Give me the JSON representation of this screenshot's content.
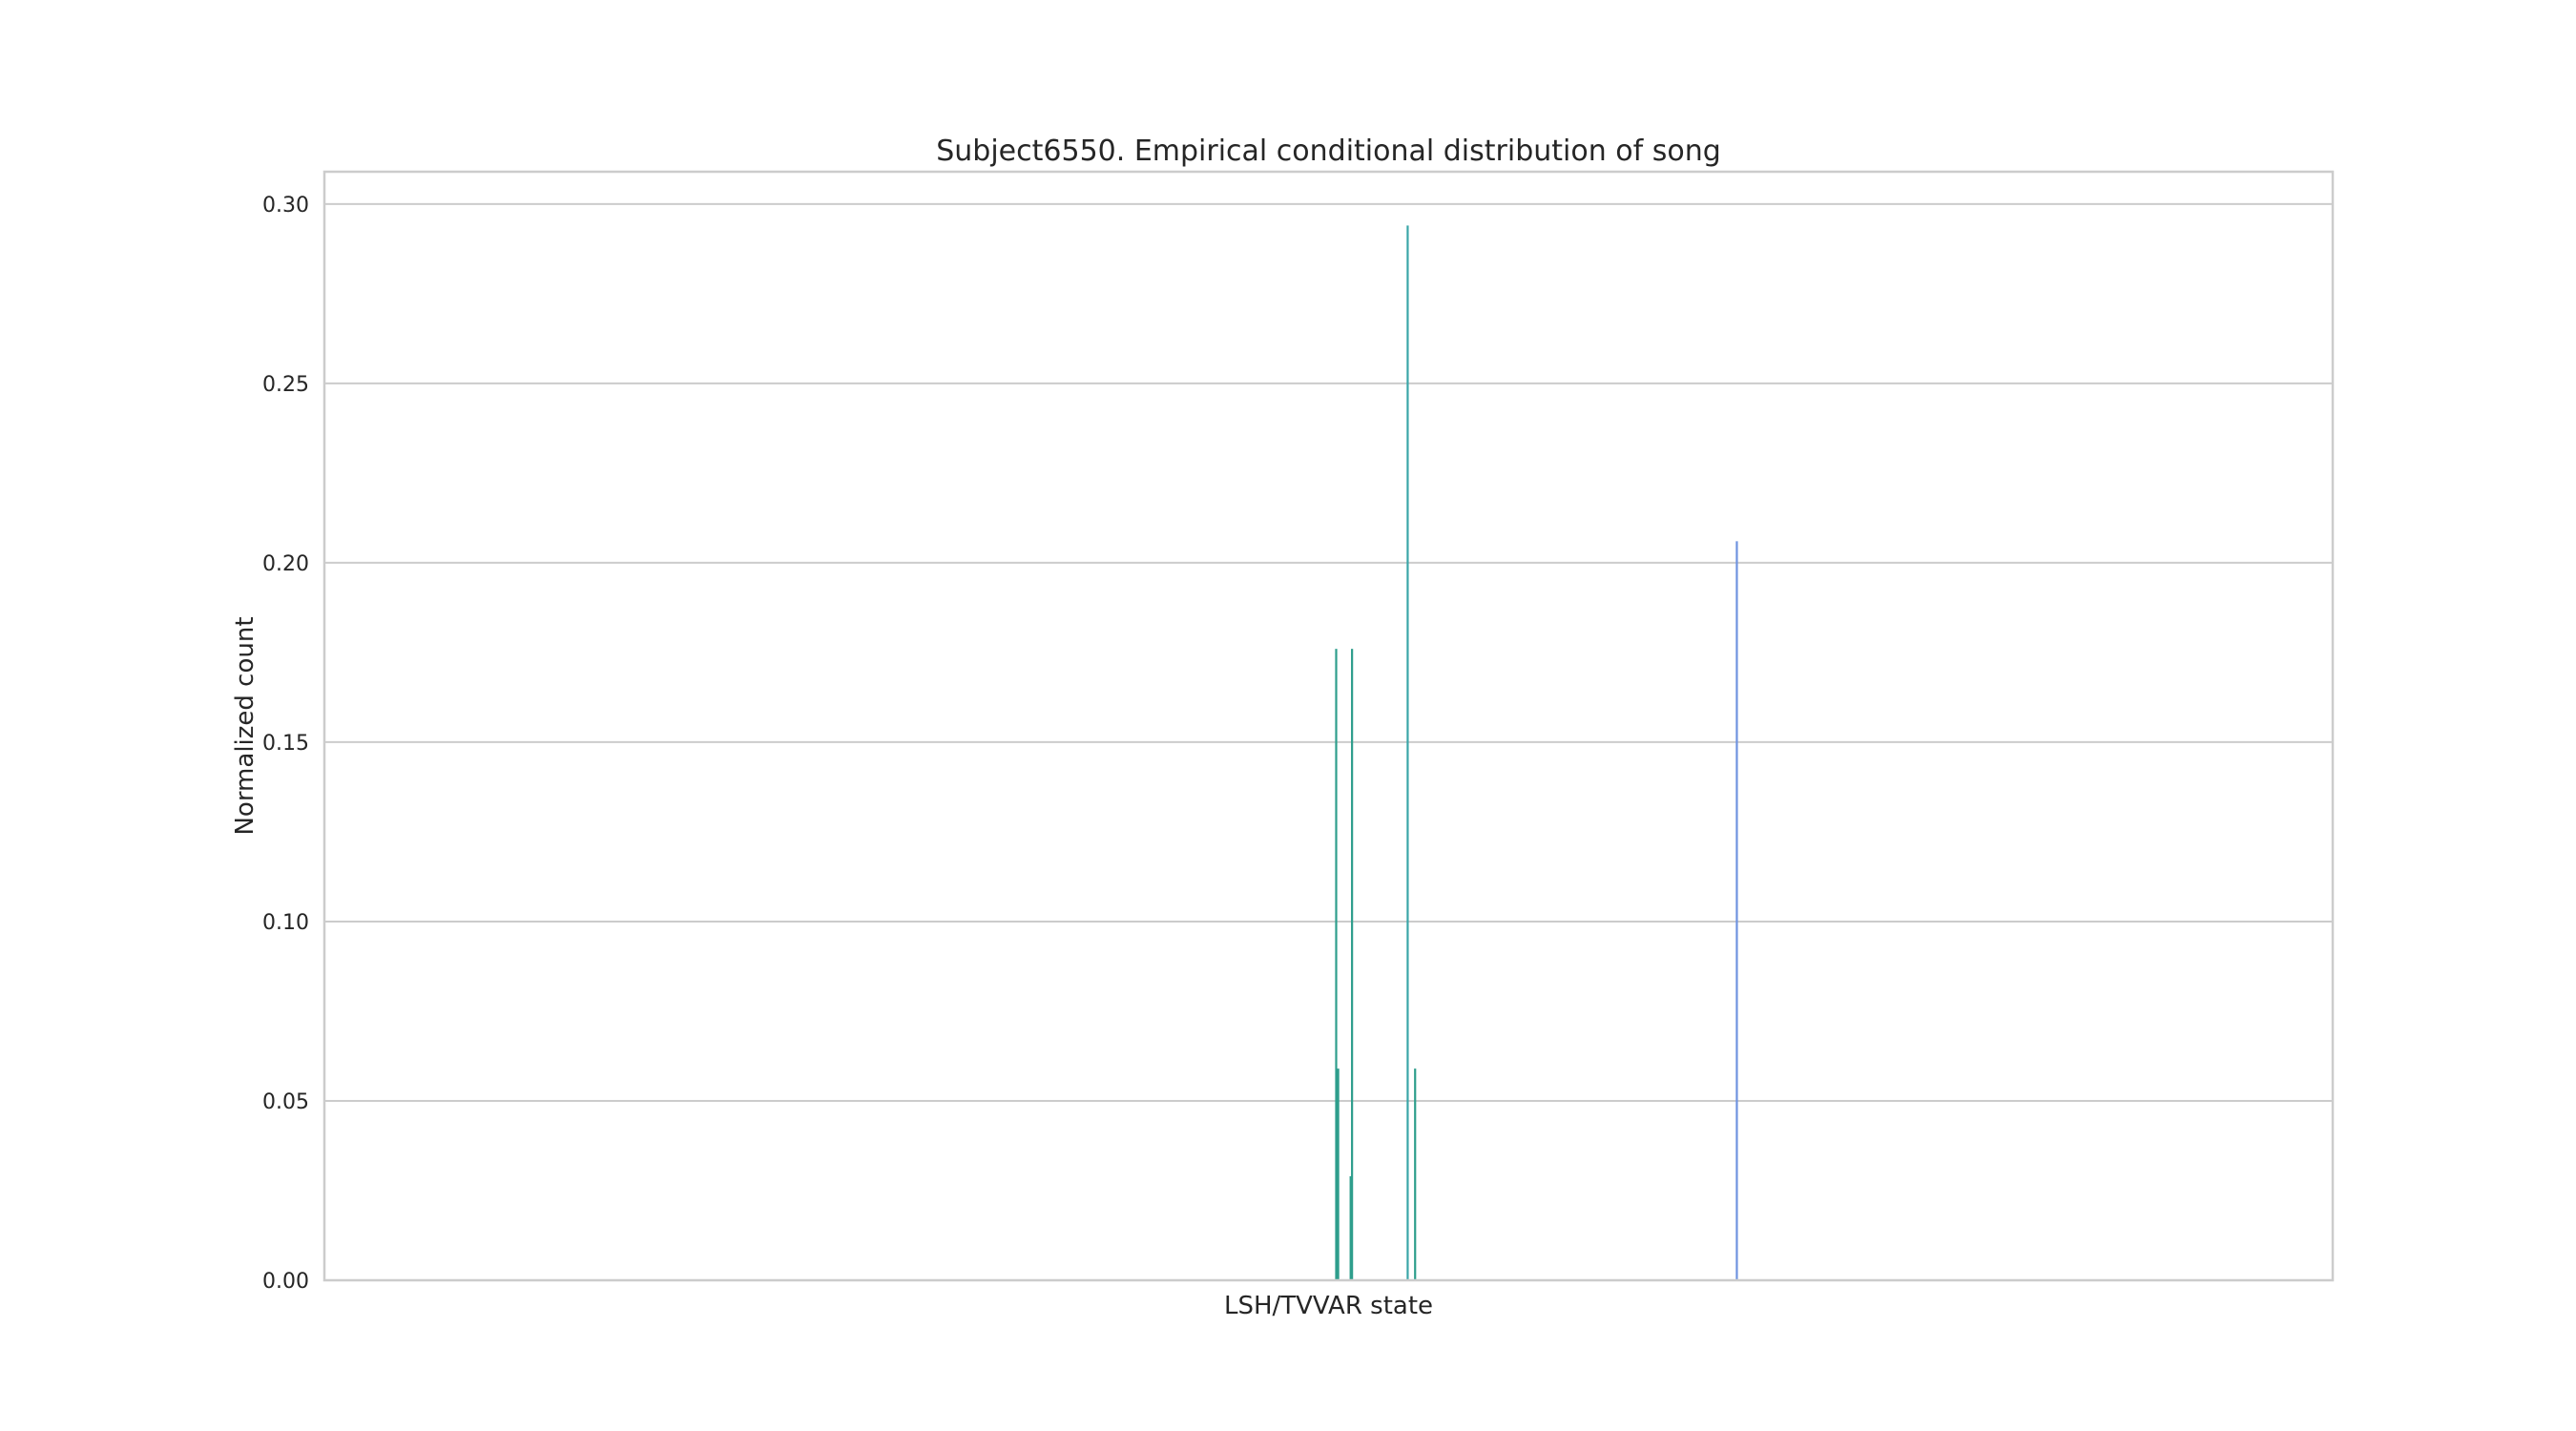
{
  "chart_data": {
    "type": "bar",
    "title": "Subject6550. Empirical conditional distribution of song",
    "xlabel": "LSH/TVVAR state",
    "ylabel": "Normalized count",
    "ylim": [
      0,
      0.309
    ],
    "xlim": [
      0,
      1000
    ],
    "yticks": [
      0.0,
      0.05,
      0.1,
      0.15,
      0.2,
      0.25,
      0.3
    ],
    "ytick_labels": [
      "0.00",
      "0.05",
      "0.10",
      "0.15",
      "0.20",
      "0.25",
      "0.30"
    ],
    "grid": "y",
    "x_tick_labels_shown": false,
    "bars": [
      {
        "x": 503.8,
        "value": 0.176,
        "color": "#2e9e8c"
      },
      {
        "x": 504.8,
        "value": 0.059,
        "color": "#2e9e8c"
      },
      {
        "x": 511.0,
        "value": 0.029,
        "color": "#2e9e8c"
      },
      {
        "x": 511.7,
        "value": 0.176,
        "color": "#2e9e8c"
      },
      {
        "x": 539.4,
        "value": 0.294,
        "color": "#3aa6a8"
      },
      {
        "x": 543.1,
        "value": 0.059,
        "color": "#2e9e8c"
      },
      {
        "x": 703.3,
        "value": 0.206,
        "color": "#6f93e0"
      }
    ]
  }
}
